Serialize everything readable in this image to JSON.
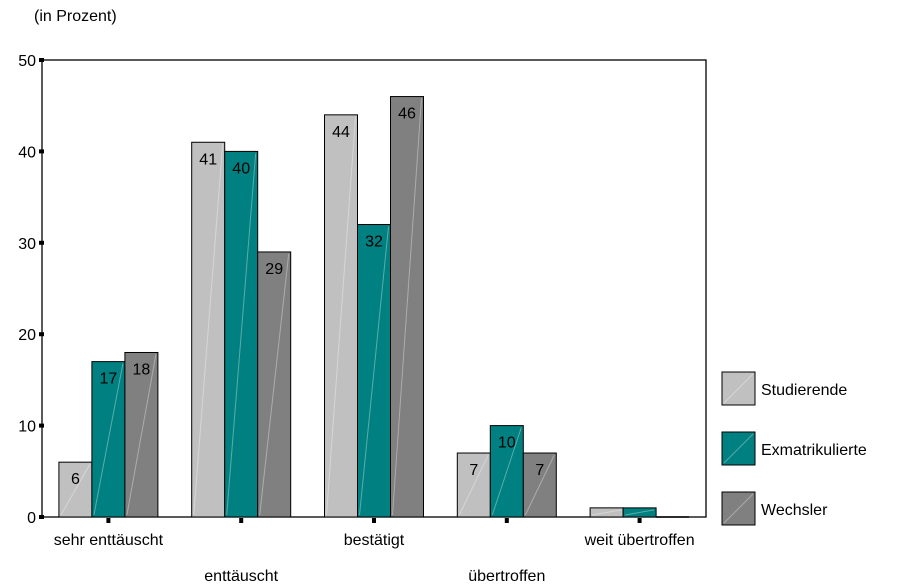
{
  "chart_data": {
    "type": "bar",
    "ylabel": "(in Prozent)",
    "ylim": [
      0,
      50
    ],
    "yticks": [
      0,
      10,
      20,
      30,
      40,
      50
    ],
    "categories": [
      "sehr enttäuscht",
      "enttäuscht",
      "bestätigt",
      "übertroffen",
      "weit übertroffen"
    ],
    "series": [
      {
        "name": "Studierende",
        "values": [
          6,
          41,
          44,
          7,
          1
        ],
        "labels": [
          "6",
          "41",
          "44",
          "7",
          ""
        ],
        "color": "#c0c0c0"
      },
      {
        "name": "Exmatrikulierte",
        "values": [
          17,
          40,
          32,
          10,
          1
        ],
        "labels": [
          "17",
          "40",
          "32",
          "10",
          ""
        ],
        "color": "#008080"
      },
      {
        "name": "Wechsler",
        "values": [
          18,
          29,
          46,
          7,
          0
        ],
        "labels": [
          "18",
          "29",
          "46",
          "7",
          ""
        ],
        "color": "#808080"
      }
    ],
    "legend_position": "right",
    "grid": false
  }
}
